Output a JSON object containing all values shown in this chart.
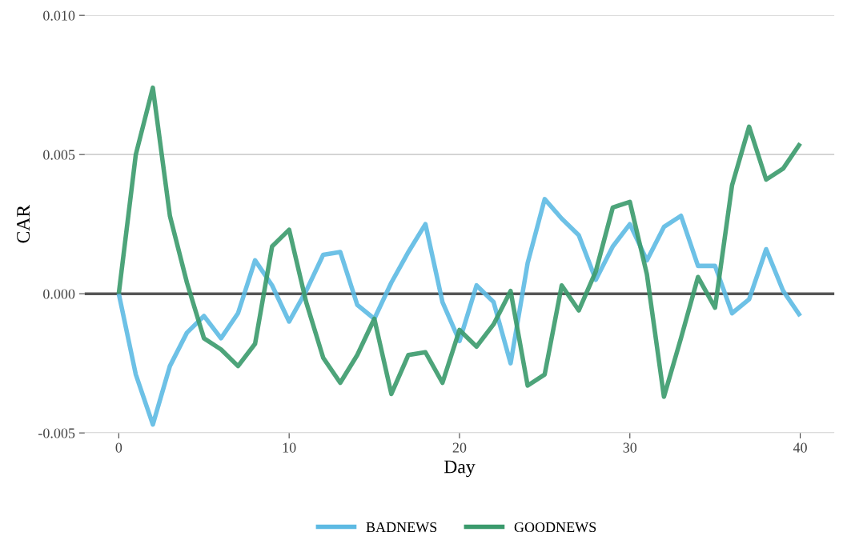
{
  "chart_data": {
    "type": "line",
    "xlabel": "Day",
    "ylabel": "CAR",
    "x": [
      0,
      1,
      2,
      3,
      4,
      5,
      6,
      7,
      8,
      9,
      10,
      11,
      12,
      13,
      14,
      15,
      16,
      17,
      18,
      19,
      20,
      21,
      22,
      23,
      24,
      25,
      26,
      27,
      28,
      29,
      30,
      31,
      32,
      33,
      34,
      35,
      36,
      37,
      38,
      39,
      40
    ],
    "series": [
      {
        "name": "BADNEWS",
        "color": "#5dbae3",
        "values": [
          0,
          -0.0029,
          -0.0047,
          -0.0026,
          -0.0014,
          -0.0008,
          -0.0016,
          -0.0007,
          0.0012,
          0.0003,
          -0.001,
          0.0001,
          0.0014,
          0.0015,
          -0.0004,
          -0.0009,
          0.0004,
          0.0015,
          0.0025,
          -0.0003,
          -0.0017,
          0.0003,
          -0.0003,
          -0.0025,
          0.0011,
          0.0034,
          0.0027,
          0.0021,
          0.0005,
          0.0017,
          0.0025,
          0.0012,
          0.0024,
          0.0028,
          0.001,
          0.001,
          -0.0007,
          -0.0002,
          0.0016,
          0.0001,
          -0.0008
        ]
      },
      {
        "name": "GOODNEWS",
        "color": "#3a9a6c",
        "values": [
          0,
          0.005,
          0.0074,
          0.0028,
          0.0004,
          -0.0016,
          -0.002,
          -0.0026,
          -0.0018,
          0.0017,
          0.0023,
          -0.0003,
          -0.0023,
          -0.0032,
          -0.0022,
          -0.0009,
          -0.0036,
          -0.0022,
          -0.0021,
          -0.0032,
          -0.0013,
          -0.0019,
          -0.0011,
          0.0001,
          -0.0033,
          -0.0029,
          0.0003,
          -0.0006,
          0.0008,
          0.0031,
          0.0033,
          0.0007,
          -0.0037,
          -0.0016,
          0.0006,
          -0.0005,
          0.0039,
          0.006,
          0.0041,
          0.0045,
          0.0054
        ]
      }
    ],
    "xlim": [
      -2,
      42
    ],
    "xticks": [
      0,
      10,
      20,
      30,
      40
    ],
    "ylim": [
      -0.005,
      0.01
    ],
    "yticks": [
      {
        "value": -0.005,
        "label": "-0.005"
      },
      {
        "value": 0,
        "label": "0.000"
      },
      {
        "value": 0.005,
        "label": "0.005"
      },
      {
        "value": 0.01,
        "label": "0.010"
      }
    ],
    "ref_lines": [
      {
        "axis": "y",
        "value": 0,
        "color": "#555555"
      }
    ],
    "grid": "y",
    "legend": "bottom",
    "line_style": "solid",
    "marker": "none"
  }
}
